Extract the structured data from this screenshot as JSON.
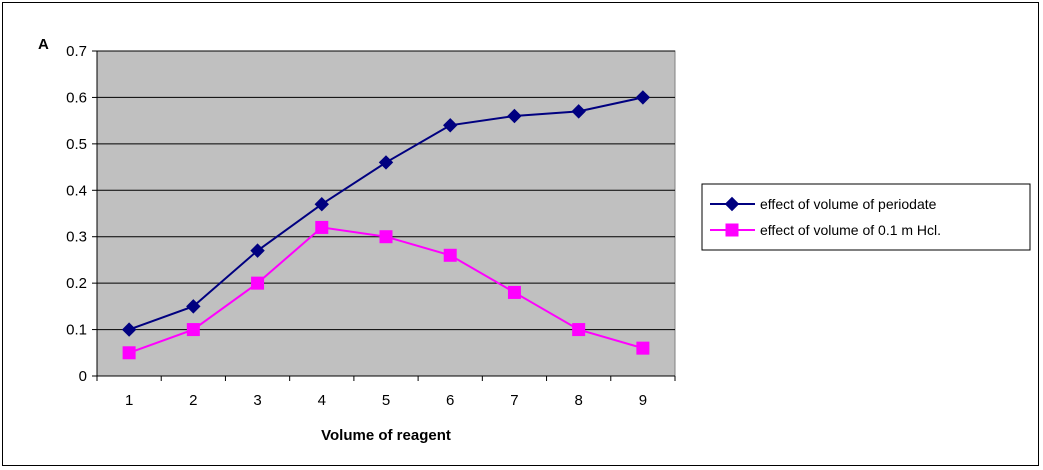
{
  "chart_data": {
    "type": "line",
    "title": "",
    "xlabel": "Volume of reagent",
    "ylabel": "A",
    "ylim": [
      0,
      0.7
    ],
    "yticks": [
      "0",
      "0.1",
      "0.2",
      "0.3",
      "0.4",
      "0.5",
      "0.6",
      "0.7"
    ],
    "categories": [
      "1",
      "2",
      "3",
      "4",
      "5",
      "6",
      "7",
      "8",
      "9"
    ],
    "grid": true,
    "plot_background": "#c0c0c0",
    "legend_position": "right",
    "series": [
      {
        "name": "effect of volume of periodate",
        "color": "#000080",
        "marker": "diamond",
        "values": [
          0.1,
          0.15,
          0.27,
          0.37,
          0.46,
          0.54,
          0.56,
          0.57,
          0.6
        ]
      },
      {
        "name": "effect of volume of 0.1 m Hcl.",
        "color": "#ff00ff",
        "marker": "square",
        "values": [
          0.05,
          0.1,
          0.2,
          0.32,
          0.3,
          0.26,
          0.18,
          0.1,
          0.06
        ]
      }
    ]
  }
}
